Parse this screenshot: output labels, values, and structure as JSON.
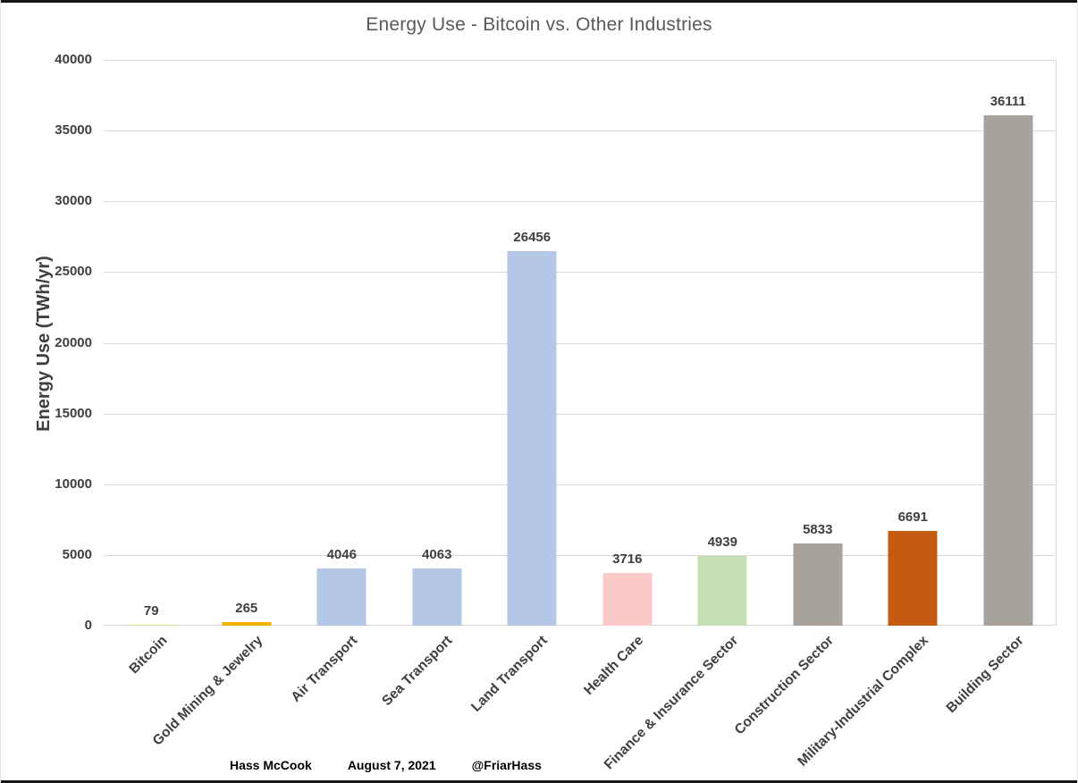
{
  "chart_data": {
    "type": "bar",
    "title": "Energy Use - Bitcoin vs. Other Industries",
    "xlabel": "",
    "ylabel": "Energy Use (TWh/yr)",
    "ylim": [
      0,
      40000
    ],
    "yticks": [
      0,
      5000,
      10000,
      15000,
      20000,
      25000,
      30000,
      35000,
      40000
    ],
    "grid": true,
    "legend": "none",
    "categories": [
      "Bitcoin",
      "Gold Mining & Jewelry",
      "Air Transport",
      "Sea Transport",
      "Land Transport",
      "Health Care",
      "Finance & Insurance Sector",
      "Construction Sector",
      "Military-Industrial Complex",
      "Building Sector"
    ],
    "values": [
      79,
      265,
      4046,
      4063,
      26456,
      3716,
      4939,
      5833,
      6691,
      36111
    ],
    "data_labels": [
      "79",
      "265",
      "4046",
      "4063",
      "26456",
      "3716",
      "4939",
      "5833",
      "6691",
      "36111"
    ],
    "bar_colors": [
      "#d8dc8f",
      "#f2b200",
      "#b4c7e7",
      "#b4c7e7",
      "#b4c7e7",
      "#fcc9c9",
      "#c5e0b4",
      "#a8a29c",
      "#c55a11",
      "#a8a29c"
    ],
    "gridline_color": "#d9d9d9",
    "label_color": "#3f3f3f",
    "title_color": "#595959"
  },
  "footer": {
    "author": "Hass McCook",
    "date": "August 7, 2021",
    "handle": "@FriarHass"
  }
}
